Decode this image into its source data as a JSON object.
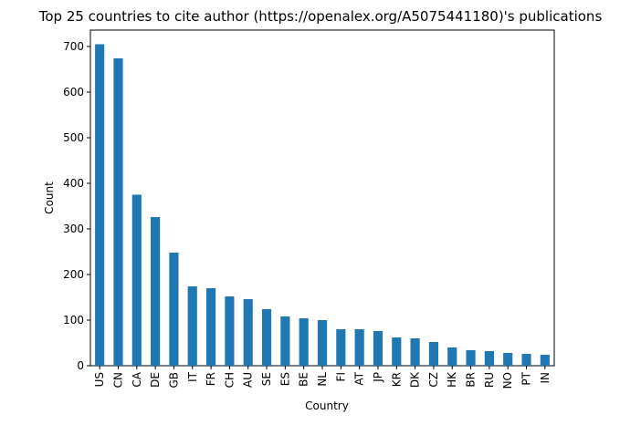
{
  "chart_data": {
    "type": "bar",
    "title": "Top 25 countries to cite author (https://openalex.org/A5075441180)'s publications",
    "x_label": "Country",
    "y_label": "Count",
    "categories": [
      "US",
      "CN",
      "CA",
      "DE",
      "GB",
      "IT",
      "FR",
      "CH",
      "AU",
      "SE",
      "ES",
      "BE",
      "NL",
      "FI",
      "AT",
      "JP",
      "KR",
      "DK",
      "CZ",
      "HK",
      "BR",
      "RU",
      "NO",
      "PT",
      "IN"
    ],
    "values": [
      705,
      674,
      375,
      326,
      248,
      174,
      170,
      152,
      146,
      124,
      108,
      104,
      100,
      80,
      80,
      76,
      62,
      60,
      52,
      40,
      34,
      32,
      28,
      26,
      24
    ],
    "color": "#1f77b4",
    "ylim": [
      0,
      736
    ],
    "yticks": [
      0,
      100,
      200,
      300,
      400,
      500,
      600,
      700
    ],
    "grid": false
  }
}
